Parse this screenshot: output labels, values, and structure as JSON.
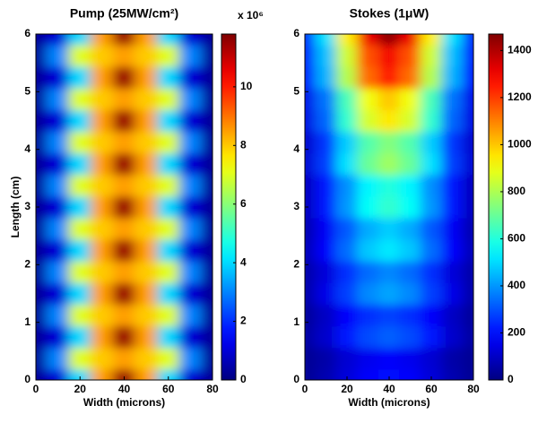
{
  "chart_data": [
    {
      "type": "contour",
      "title": "Pump (25MW/cm²)",
      "xlabel": "Width (microns)",
      "ylabel": "Length (cm)",
      "x": [
        0,
        10,
        20,
        30,
        40,
        50,
        60,
        70,
        80
      ],
      "y": [
        0,
        0.375,
        0.75,
        1.125,
        1.5,
        1.875,
        2.25,
        2.625,
        3,
        3.375,
        3.75,
        4.125,
        4.5,
        4.875,
        5.25,
        5.625,
        6
      ],
      "z": [
        [
          0.3,
          1,
          4,
          8.5,
          11.5,
          8.5,
          4,
          1,
          0.3
        ],
        [
          0.3,
          3,
          7,
          8,
          8.5,
          8,
          7,
          3,
          0.3
        ],
        [
          0.3,
          1,
          4,
          8.5,
          11.5,
          8.5,
          4,
          1,
          0.3
        ],
        [
          0.3,
          3,
          7,
          8,
          8.5,
          8,
          7,
          3,
          0.3
        ],
        [
          0.3,
          1,
          4,
          8.5,
          11.5,
          8.5,
          4,
          1,
          0.3
        ],
        [
          0.3,
          3,
          7,
          8,
          8.5,
          8,
          7,
          3,
          0.3
        ],
        [
          0.3,
          1,
          4,
          8.5,
          11.5,
          8.5,
          4,
          1,
          0.3
        ],
        [
          0.3,
          3,
          7,
          8,
          8.5,
          8,
          7,
          3,
          0.3
        ],
        [
          0.3,
          1,
          4,
          8.5,
          11.5,
          8.5,
          4,
          1,
          0.3
        ],
        [
          0.3,
          3,
          7,
          8,
          8.5,
          8,
          7,
          3,
          0.3
        ],
        [
          0.3,
          1,
          4,
          8.5,
          11.5,
          8.5,
          4,
          1,
          0.3
        ],
        [
          0.3,
          3,
          7,
          8,
          8.5,
          8,
          7,
          3,
          0.3
        ],
        [
          0.3,
          1,
          4,
          8.5,
          11.5,
          8.5,
          4,
          1,
          0.3
        ],
        [
          0.3,
          3,
          7,
          8,
          8.5,
          8,
          7,
          3,
          0.3
        ],
        [
          0.3,
          1,
          4,
          8.5,
          11.5,
          8.5,
          4,
          1,
          0.3
        ],
        [
          0.3,
          3,
          7,
          8,
          8.5,
          8,
          7,
          3,
          0.3
        ],
        [
          0.3,
          1,
          4,
          8.5,
          11.5,
          8.5,
          4,
          1,
          0.3
        ]
      ],
      "xlim": [
        0,
        80
      ],
      "ylim": [
        0,
        6
      ],
      "xticks": [
        0,
        20,
        40,
        60,
        80
      ],
      "yticks": [
        0,
        1,
        2,
        3,
        4,
        5,
        6
      ],
      "clim": [
        0,
        11.8
      ],
      "cticks": [
        0,
        2,
        4,
        6,
        8,
        10
      ],
      "cmultiplier": "x 10⁶",
      "colormap": "jet"
    },
    {
      "type": "contour",
      "title": "Stokes (1μW)",
      "xlabel": "Width (microns)",
      "x": [
        0,
        10,
        20,
        30,
        40,
        50,
        60,
        70,
        80
      ],
      "y": [
        0,
        0.375,
        0.75,
        1.125,
        1.5,
        1.875,
        2.25,
        2.625,
        3,
        3.375,
        3.75,
        4.125,
        4.5,
        4.875,
        5.25,
        5.625,
        6
      ],
      "z": [
        [
          30,
          70,
          130,
          180,
          200,
          180,
          130,
          70,
          30
        ],
        [
          30,
          60,
          120,
          160,
          180,
          160,
          120,
          60,
          30
        ],
        [
          50,
          110,
          210,
          290,
          320,
          290,
          210,
          110,
          50
        ],
        [
          40,
          100,
          180,
          250,
          280,
          250,
          180,
          100,
          40
        ],
        [
          60,
          150,
          270,
          380,
          420,
          380,
          270,
          150,
          60
        ],
        [
          60,
          130,
          250,
          340,
          380,
          340,
          250,
          130,
          60
        ],
        [
          80,
          180,
          340,
          470,
          520,
          470,
          340,
          180,
          80
        ],
        [
          70,
          170,
          310,
          430,
          480,
          430,
          310,
          170,
          70
        ],
        [
          90,
          220,
          400,
          560,
          620,
          560,
          400,
          220,
          90
        ],
        [
          90,
          210,
          390,
          540,
          600,
          540,
          390,
          210,
          90
        ],
        [
          120,
          270,
          510,
          700,
          780,
          700,
          510,
          270,
          120
        ],
        [
          110,
          260,
          480,
          670,
          740,
          670,
          480,
          260,
          110
        ],
        [
          140,
          330,
          620,
          860,
          950,
          860,
          620,
          330,
          140
        ],
        [
          150,
          350,
          650,
          900,
          1000,
          900,
          650,
          350,
          150
        ],
        [
          190,
          440,
          810,
          1130,
          1250,
          1130,
          810,
          440,
          190
        ],
        [
          200,
          460,
          850,
          1170,
          1300,
          1170,
          850,
          460,
          200
        ],
        [
          220,
          510,
          940,
          1310,
          1450,
          1310,
          940,
          510,
          220
        ]
      ],
      "xlim": [
        0,
        80
      ],
      "ylim": [
        0,
        6
      ],
      "xticks": [
        0,
        20,
        40,
        60,
        80
      ],
      "yticks": [
        0,
        1,
        2,
        3,
        4,
        5,
        6
      ],
      "clim": [
        0,
        1470
      ],
      "cticks": [
        0,
        200,
        400,
        600,
        800,
        1000,
        1200,
        1400
      ],
      "colormap": "jet"
    }
  ]
}
